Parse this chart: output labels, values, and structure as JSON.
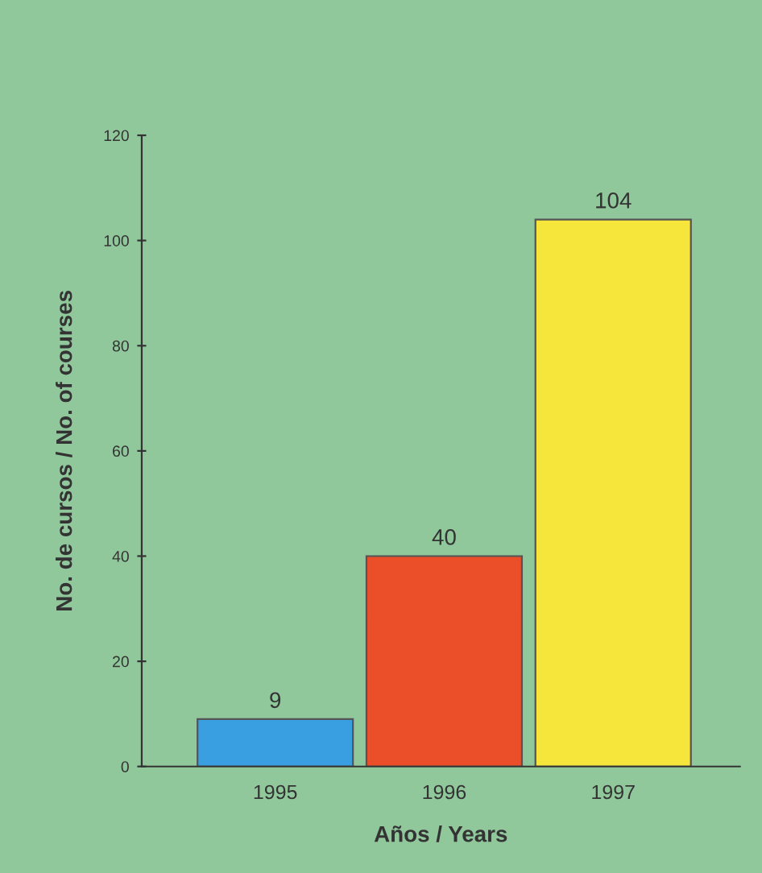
{
  "chart_data": {
    "type": "bar",
    "xlabel": "Años / Years",
    "ylabel": "No. de cursos / No. of courses",
    "categories": [
      "1995",
      "1996",
      "1997"
    ],
    "values": [
      9,
      40,
      104
    ],
    "colors": [
      "#3a9fe0",
      "#ea4f2a",
      "#f6e63c"
    ],
    "ylim": [
      0,
      120
    ],
    "yticks": [
      0,
      20,
      40,
      60,
      80,
      100,
      120
    ],
    "grid": false,
    "data_labels": true
  }
}
